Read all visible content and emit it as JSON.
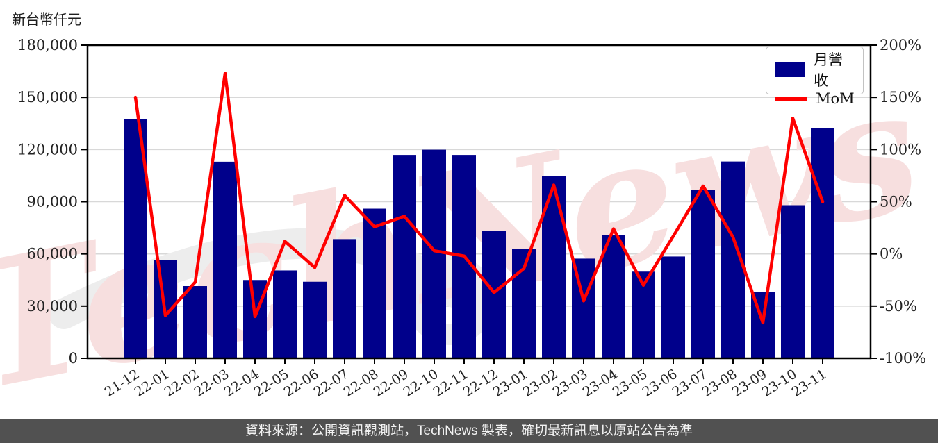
{
  "header": {
    "unit_label": "新台幣仟元"
  },
  "legend": {
    "revenue_label": "月營收",
    "mom_label": "MoM"
  },
  "watermark": {
    "text": "TechNews"
  },
  "footer": {
    "source_text": "資料來源：公開資訊觀測站，TechNews 製表，確切最新訊息以原站公告為準"
  },
  "colors": {
    "bar": "#00008B",
    "line": "#FF0000",
    "grid": "#d8d8d8",
    "axis": "#000000",
    "tick_text": "#222222",
    "footer_bg": "#515151",
    "watermark_pink": "#f7dfdf",
    "watermark_gray": "#ededed"
  },
  "chart_data": {
    "type": "bar",
    "title": "",
    "xlabel": "",
    "ylabel": "新台幣仟元",
    "categories": [
      "21-12",
      "22-01",
      "22-02",
      "22-03",
      "22-04",
      "22-05",
      "22-06",
      "22-07",
      "22-08",
      "22-09",
      "22-10",
      "22-11",
      "22-12",
      "23-01",
      "23-02",
      "23-03",
      "23-04",
      "23-05",
      "23-06",
      "23-07",
      "23-08",
      "23-09",
      "23-10",
      "23-11"
    ],
    "series": [
      {
        "name": "月營收",
        "type": "bar",
        "axis": "left",
        "values": [
          137500,
          56500,
          41500,
          113000,
          45000,
          50500,
          44000,
          68500,
          86000,
          116900,
          119900,
          116900,
          73300,
          62900,
          104700,
          57300,
          70900,
          49800,
          58500,
          96800,
          113100,
          38200,
          88000,
          132200
        ]
      },
      {
        "name": "MoM",
        "type": "line",
        "axis": "right",
        "values": [
          150,
          -59,
          -27,
          173,
          -60,
          12,
          -13,
          56,
          26,
          36,
          3,
          -2,
          -37,
          -14,
          66,
          -45,
          24,
          -30,
          17,
          65,
          16,
          -66,
          130,
          50
        ]
      }
    ],
    "left_axis": {
      "min": 0,
      "max": 180000,
      "ticks": [
        "180,000",
        "150,000",
        "120,000",
        "90,000",
        "60,000",
        "30,000",
        "0"
      ]
    },
    "right_axis": {
      "min": -100,
      "max": 200,
      "ticks": [
        "200%",
        "150%",
        "100%",
        "50%",
        "0%",
        "-50%",
        "-100%"
      ]
    },
    "grid": true,
    "legend_position": "top-right"
  }
}
